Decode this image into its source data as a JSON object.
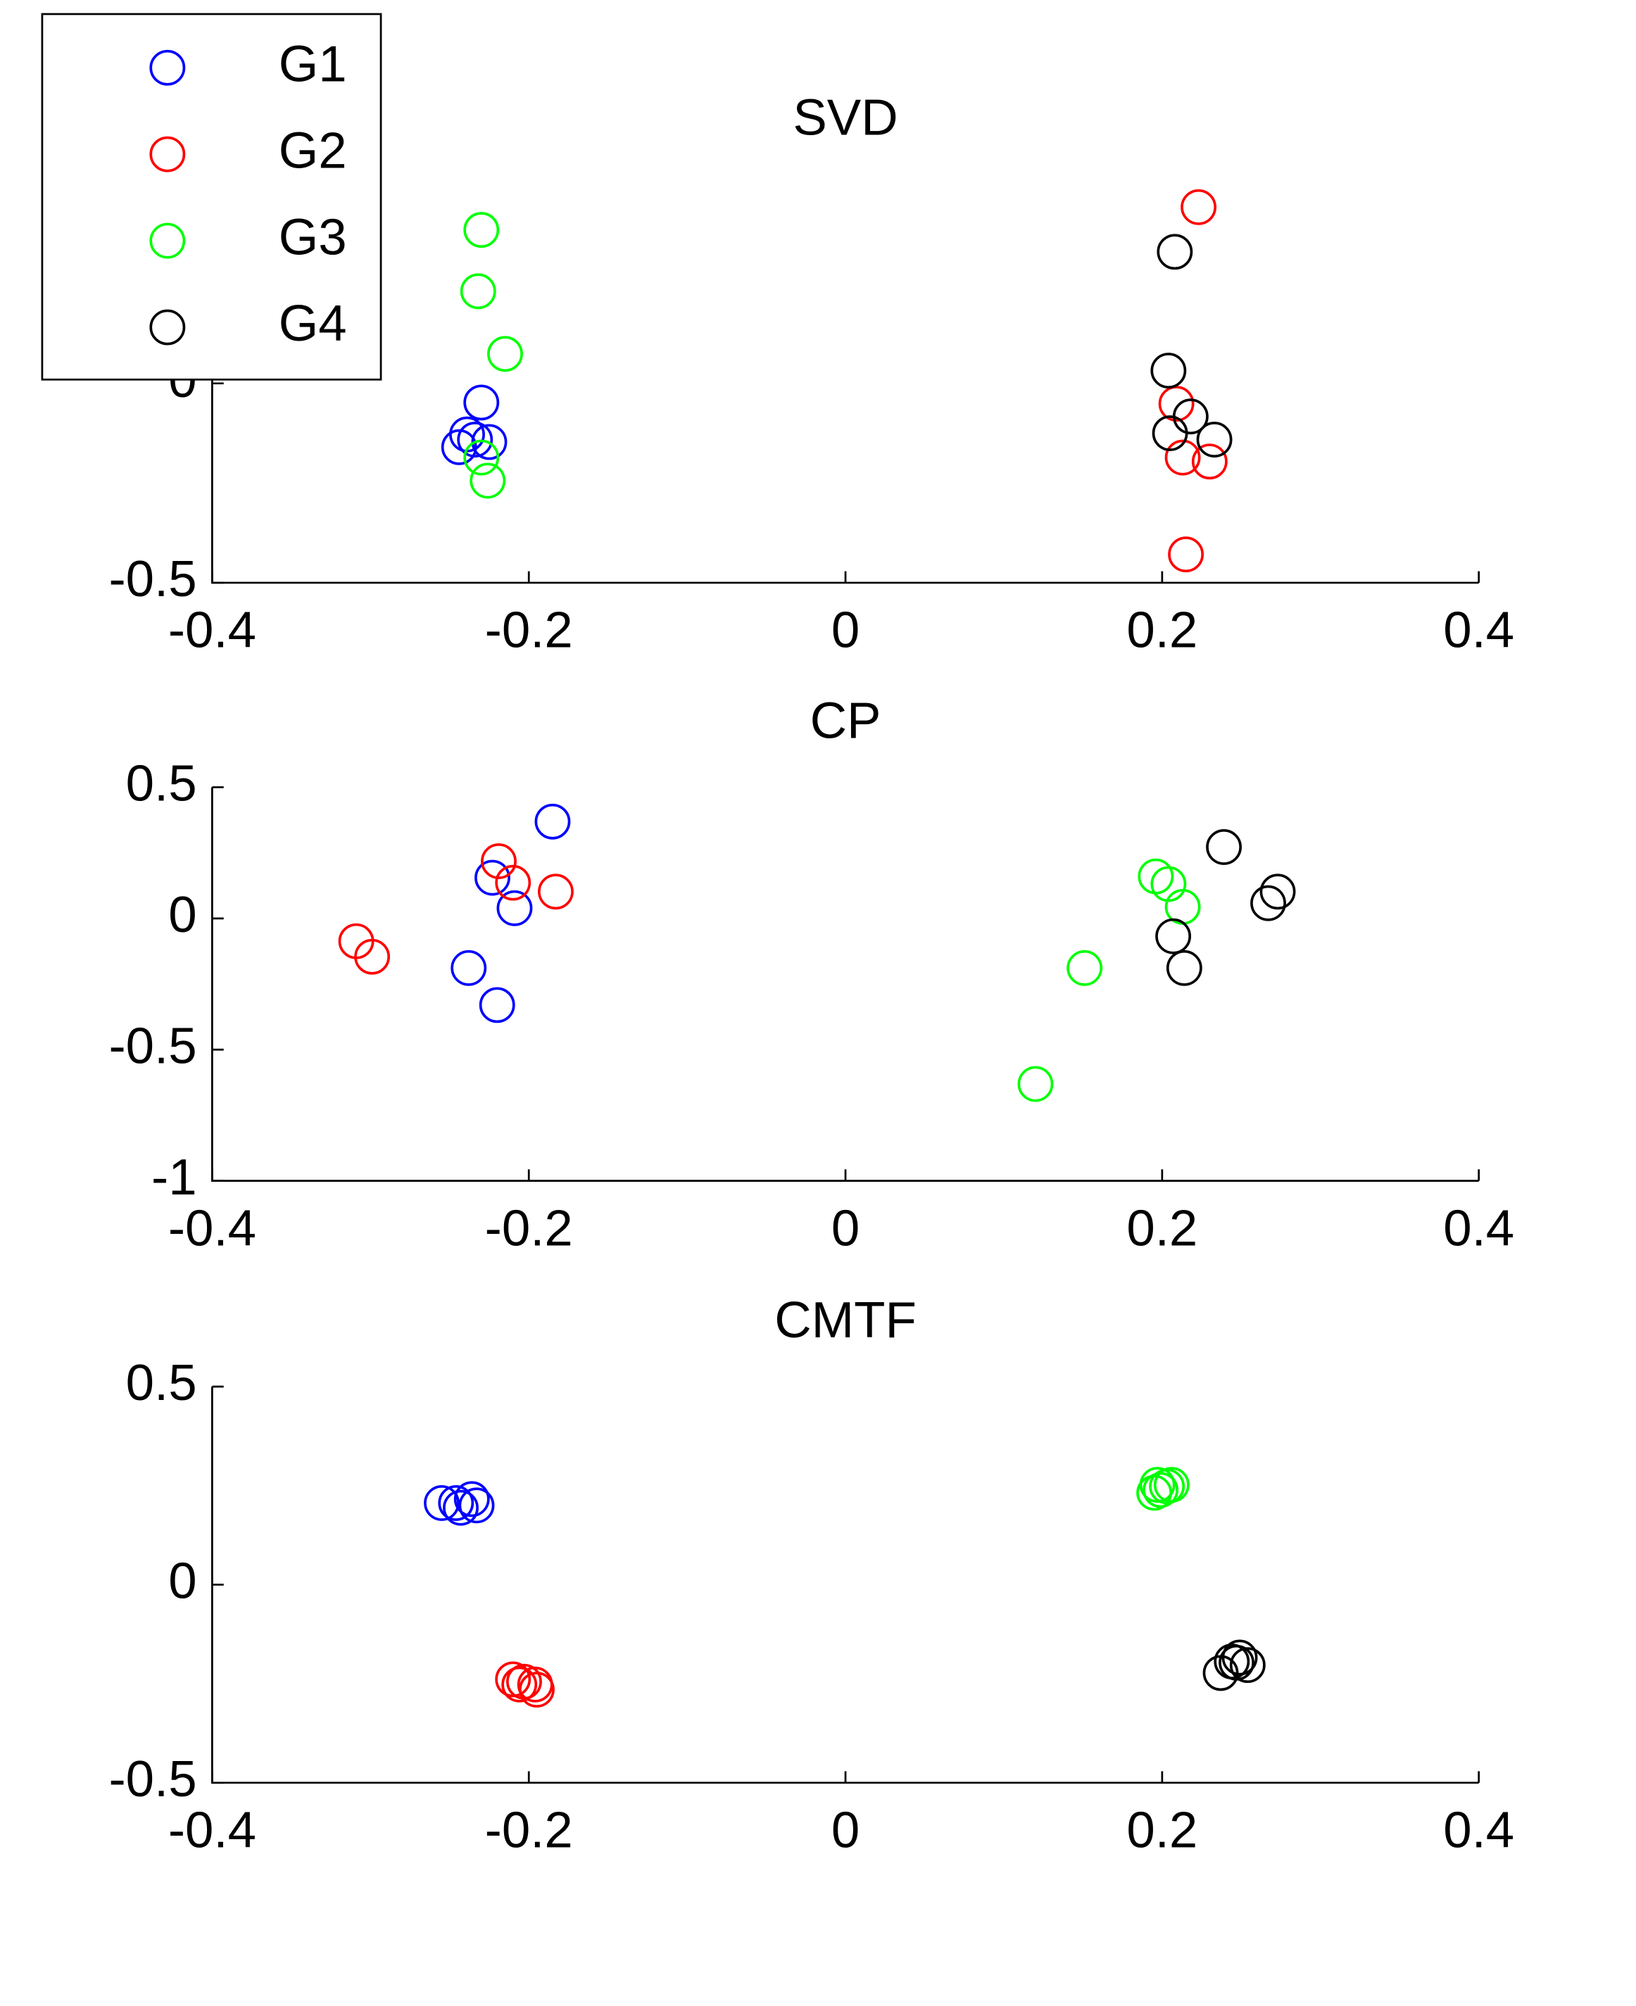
{
  "chart_data": [
    {
      "type": "scatter",
      "title": "SVD",
      "legend": "upper left",
      "xlim": [
        -0.4,
        0.4
      ],
      "xticks": [
        -0.4,
        -0.2,
        0,
        0.2,
        0.4
      ],
      "ylim": [
        -0.5,
        0.5
      ],
      "yticks": [
        -0.5,
        0
      ],
      "series": [
        {
          "name": "G1",
          "color": "#0000ff",
          "x": [
            -0.23,
            -0.239,
            -0.234,
            -0.225,
            -0.244
          ],
          "y": [
            -0.048,
            -0.128,
            -0.141,
            -0.147,
            -0.16
          ]
        },
        {
          "name": "G2",
          "color": "#ff0000",
          "x": [
            0.223,
            0.209,
            0.213,
            0.23,
            0.215
          ],
          "y": [
            0.442,
            -0.051,
            -0.186,
            -0.196,
            -0.429
          ]
        },
        {
          "name": "G3",
          "color": "#00ff00",
          "x": [
            -0.23,
            -0.232,
            -0.215,
            -0.23,
            -0.226
          ],
          "y": [
            0.385,
            0.231,
            0.074,
            -0.186,
            -0.244
          ]
        },
        {
          "name": "G4",
          "color": "#000000",
          "x": [
            0.208,
            0.204,
            0.218,
            0.205,
            0.233
          ],
          "y": [
            0.33,
            0.032,
            -0.083,
            -0.125,
            -0.141
          ]
        }
      ]
    },
    {
      "type": "scatter",
      "title": "CP",
      "xlim": [
        -0.4,
        0.4
      ],
      "xticks": [
        -0.4,
        -0.2,
        0,
        0.2,
        0.4
      ],
      "ylim": [
        -1,
        0.5
      ],
      "yticks": [
        -1,
        -0.5,
        0,
        0.5
      ],
      "series": [
        {
          "color": "#0000ff",
          "x": [
            -0.185,
            -0.223,
            -0.209,
            -0.238,
            -0.22
          ],
          "y": [
            0.369,
            0.155,
            0.039,
            -0.189,
            -0.33
          ]
        },
        {
          "color": "#ff0000",
          "x": [
            -0.219,
            -0.21,
            -0.183,
            -0.309,
            -0.299
          ],
          "y": [
            0.218,
            0.136,
            0.102,
            -0.087,
            -0.146
          ]
        },
        {
          "color": "#00ff00",
          "x": [
            0.196,
            0.204,
            0.213,
            0.151,
            0.12
          ],
          "y": [
            0.16,
            0.131,
            0.044,
            -0.189,
            -0.631
          ]
        },
        {
          "color": "#000000",
          "x": [
            0.239,
            0.273,
            0.267,
            0.207,
            0.214
          ],
          "y": [
            0.272,
            0.102,
            0.058,
            -0.068,
            -0.189
          ]
        }
      ]
    },
    {
      "type": "scatter",
      "title": "CMTF",
      "xlim": [
        -0.4,
        0.4
      ],
      "xticks": [
        -0.4,
        -0.2,
        0,
        0.2,
        0.4
      ],
      "ylim": [
        -0.5,
        0.5
      ],
      "yticks": [
        -0.5,
        0,
        0.5
      ],
      "series": [
        {
          "color": "#0000ff",
          "x": [
            -0.255,
            -0.246,
            -0.236,
            -0.233,
            -0.243
          ],
          "y": [
            0.206,
            0.206,
            0.216,
            0.2,
            0.194
          ]
        },
        {
          "color": "#ff0000",
          "x": [
            -0.21,
            -0.206,
            -0.203,
            -0.196,
            -0.195
          ],
          "y": [
            -0.239,
            -0.252,
            -0.245,
            -0.252,
            -0.265
          ]
        },
        {
          "color": "#00ff00",
          "x": [
            0.195,
            0.199,
            0.203,
            0.206,
            0.197
          ],
          "y": [
            0.232,
            0.239,
            0.248,
            0.252,
            0.252
          ]
        },
        {
          "color": "#000000",
          "x": [
            0.237,
            0.244,
            0.249,
            0.254,
            0.247
          ],
          "y": [
            -0.223,
            -0.194,
            -0.184,
            -0.203,
            -0.197
          ]
        }
      ]
    }
  ]
}
